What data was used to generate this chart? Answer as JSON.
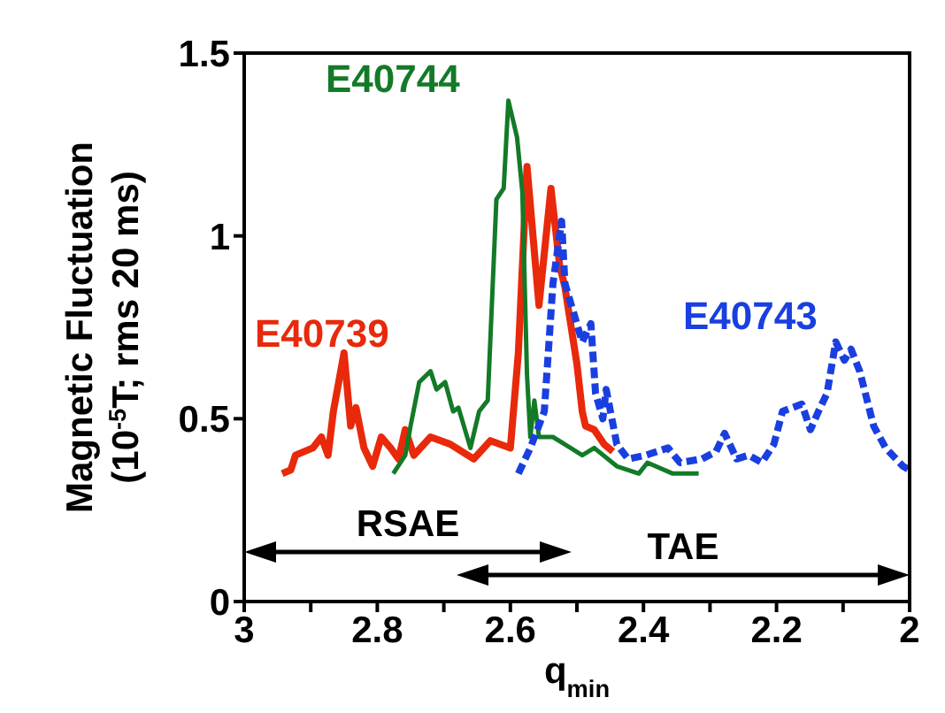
{
  "chart_data": {
    "type": "line",
    "xlabel": "q$_{min}$",
    "ylabel": "Magnetic Fluctuation\n(10$^{-5}$T; rms 20 ms)",
    "xlim": [
      3,
      2
    ],
    "xticks": [
      3,
      {
        "value": 2.9,
        "label": null
      },
      2.8,
      {
        "value": 2.7,
        "label": null
      },
      2.6,
      {
        "value": 2.5,
        "label": null
      },
      2.4,
      {
        "value": 2.3,
        "label": null
      },
      2.2,
      {
        "value": 2.1,
        "label": null
      },
      2
    ],
    "ylim": [
      0,
      1.5
    ],
    "yticks": [
      0,
      0.5,
      1,
      1.5
    ],
    "grid": false,
    "legend": false,
    "marker": "none",
    "annotations": [
      "RSAE",
      "TAE"
    ],
    "series": [
      {
        "name": "E40739",
        "color": "#e8290b",
        "line_style": "solid",
        "x": [
          2.943,
          2.93,
          2.923,
          2.897,
          2.884,
          2.874,
          2.866,
          2.85,
          2.84,
          2.832,
          2.82,
          2.807,
          2.794,
          2.78,
          2.768,
          2.758,
          2.745,
          2.72,
          2.69,
          2.655,
          2.63,
          2.6,
          2.588,
          2.575,
          2.557,
          2.539,
          2.526,
          2.518,
          2.5,
          2.492,
          2.487,
          2.474,
          2.459,
          2.446
        ],
        "values": [
          0.35,
          0.36,
          0.4,
          0.42,
          0.45,
          0.4,
          0.52,
          0.68,
          0.48,
          0.53,
          0.42,
          0.37,
          0.45,
          0.42,
          0.39,
          0.47,
          0.4,
          0.45,
          0.43,
          0.39,
          0.44,
          0.42,
          0.68,
          1.19,
          0.81,
          1.13,
          0.92,
          0.86,
          0.65,
          0.52,
          0.48,
          0.47,
          0.43,
          0.41
        ]
      },
      {
        "name": "E40744",
        "color": "#137a27",
        "line_style": "solid",
        "x": [
          2.776,
          2.758,
          2.75,
          2.737,
          2.72,
          2.711,
          2.698,
          2.686,
          2.678,
          2.66,
          2.647,
          2.634,
          2.621,
          2.61,
          2.603,
          2.59,
          2.582,
          2.575,
          2.57,
          2.564,
          2.557,
          2.552,
          2.536,
          2.518,
          2.492,
          2.474,
          2.44,
          2.407,
          2.394,
          2.356,
          2.317
        ],
        "values": [
          0.35,
          0.4,
          0.48,
          0.6,
          0.63,
          0.58,
          0.6,
          0.52,
          0.53,
          0.42,
          0.52,
          0.55,
          1.1,
          1.13,
          1.37,
          1.27,
          1.12,
          0.62,
          0.45,
          0.55,
          0.45,
          0.45,
          0.45,
          0.43,
          0.4,
          0.42,
          0.37,
          0.35,
          0.38,
          0.35,
          0.35
        ]
      },
      {
        "name": "E40743",
        "color": "#1a3fe0",
        "line_style": "dashed",
        "x": [
          2.588,
          2.57,
          2.549,
          2.536,
          2.523,
          2.518,
          2.505,
          2.492,
          2.479,
          2.472,
          2.461,
          2.456,
          2.44,
          2.423,
          2.397,
          2.363,
          2.345,
          2.312,
          2.291,
          2.278,
          2.26,
          2.242,
          2.222,
          2.204,
          2.191,
          2.162,
          2.149,
          2.137,
          2.124,
          2.111,
          2.098,
          2.088,
          2.075,
          2.054,
          2.036,
          2.01,
          2.0
        ],
        "values": [
          0.35,
          0.42,
          0.52,
          0.87,
          1.04,
          0.87,
          0.79,
          0.71,
          0.76,
          0.57,
          0.5,
          0.58,
          0.43,
          0.39,
          0.4,
          0.42,
          0.38,
          0.39,
          0.41,
          0.46,
          0.39,
          0.4,
          0.38,
          0.43,
          0.52,
          0.54,
          0.47,
          0.52,
          0.57,
          0.71,
          0.66,
          0.69,
          0.63,
          0.48,
          0.42,
          0.37,
          0.36
        ]
      }
    ]
  }
}
